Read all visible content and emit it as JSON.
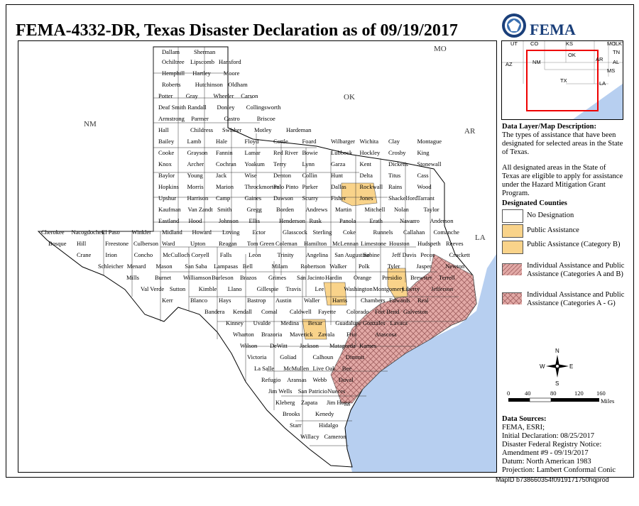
{
  "title": "FEMA-4332-DR, Texas Disaster Declaration as of 09/19/2017",
  "logo": {
    "text": "FEMA",
    "icon": "dhs-seal-icon"
  },
  "map": {
    "neighbor_labels": [
      {
        "text": "NM"
      },
      {
        "text": "OK"
      },
      {
        "text": "AR"
      },
      {
        "text": "LA"
      },
      {
        "text": "MO"
      }
    ],
    "county_labels": [
      "Dallam",
      "Sherman",
      "Ochiltree",
      "Lipscomb",
      "Hansford",
      "Hemphill",
      "Hartley",
      "Moore",
      "Roberts",
      "Hutchinson",
      "Oldham",
      "Potter",
      "Gray",
      "Wheeler",
      "Carson",
      "Deaf Smith",
      "Randall",
      "Donley",
      "Collingsworth",
      "Armstrong",
      "Parmer",
      "Castro",
      "Briscoe",
      "Hall",
      "Childress",
      "Swisher",
      "Motley",
      "Hardeman",
      "Bailey",
      "Lamb",
      "Hale",
      "Floyd",
      "Cottle",
      "Foard",
      "Wilbarger",
      "Wichita",
      "Clay",
      "Montague",
      "Cooke",
      "Grayson",
      "Fannin",
      "Lamar",
      "Red River",
      "Bowie",
      "Lubbock",
      "Hockley",
      "Crosby",
      "King",
      "Knox",
      "Archer",
      "Cochran",
      "Yoakum",
      "Terry",
      "Lynn",
      "Garza",
      "Kent",
      "Dickens",
      "Stonewall",
      "Baylor",
      "Young",
      "Jack",
      "Wise",
      "Denton",
      "Collin",
      "Hunt",
      "Delta",
      "Titus",
      "Cass",
      "Hopkins",
      "Morris",
      "Marion",
      "Throckmorton",
      "Palo Pinto",
      "Parker",
      "Dallas",
      "Rockwall",
      "Rains",
      "Wood",
      "Upshur",
      "Harrison",
      "Camp",
      "Gaines",
      "Dawson",
      "Scurry",
      "Fisher",
      "Jones",
      "Shackelford",
      "Tarrant",
      "Kaufman",
      "Van Zandt",
      "Smith",
      "Gregg",
      "Borden",
      "Andrews",
      "Martin",
      "Mitchell",
      "Nolan",
      "Taylor",
      "Eastland",
      "Hood",
      "Johnson",
      "Ellis",
      "Henderson",
      "Rusk",
      "Panola",
      "Erath",
      "Navarro",
      "Anderson",
      "Cherokee",
      "Nacogdoches",
      "El Paso",
      "Winkler",
      "Midland",
      "Howard",
      "Loving",
      "Ector",
      "Glasscock",
      "Sterling",
      "Coke",
      "Runnels",
      "Callahan",
      "Comanche",
      "Bosque",
      "Hill",
      "Freestone",
      "Culberson",
      "Ward",
      "Upton",
      "Reagan",
      "Tom Green",
      "Coleman",
      "Hamilton",
      "McLennan",
      "Limestone",
      "Houston",
      "Hudspeth",
      "Reeves",
      "Crane",
      "Irion",
      "Concho",
      "McCulloch",
      "Coryell",
      "Falls",
      "Leon",
      "Trinity",
      "Angelina",
      "San Augustine",
      "Sabine",
      "Jeff Davis",
      "Pecos",
      "Crockett",
      "Schleicher",
      "Menard",
      "Mason",
      "San Saba",
      "Lampasas",
      "Bell",
      "Milam",
      "Robertson",
      "Walker",
      "Polk",
      "Tyler",
      "Jasper",
      "Newton",
      "Mills",
      "Burnet",
      "Williamson",
      "Burleson",
      "Brazos",
      "Grimes",
      "San Jacinto",
      "Hardin",
      "Orange",
      "Presidio",
      "Brewster",
      "Terrell",
      "Val Verde",
      "Sutton",
      "Kimble",
      "Llano",
      "Gillespie",
      "Travis",
      "Lee",
      "Washington",
      "Montgomery",
      "Liberty",
      "Jefferson",
      "Kerr",
      "Blanco",
      "Hays",
      "Bastrop",
      "Austin",
      "Waller",
      "Harris",
      "Chambers",
      "Edwards",
      "Real",
      "Bandera",
      "Kendall",
      "Comal",
      "Caldwell",
      "Fayette",
      "Colorado",
      "Fort Bend",
      "Galveston",
      "Kinney",
      "Uvalde",
      "Medina",
      "Bexar",
      "Guadalupe",
      "Gonzales",
      "Lavaca",
      "Wharton",
      "Brazoria",
      "Maverick",
      "Zavala",
      "Frio",
      "Atascosa",
      "Wilson",
      "DeWitt",
      "Jackson",
      "Matagorda",
      "Karnes",
      "Victoria",
      "Goliad",
      "Calhoun",
      "Dimmit",
      "La Salle",
      "McMullen",
      "Live Oak",
      "Bee",
      "Refugio",
      "Aransas",
      "Webb",
      "Duval",
      "Jim Wells",
      "San Patricio",
      "Nueces",
      "Kleberg",
      "Zapata",
      "Jim Hogg",
      "Brooks",
      "Kenedy",
      "Starr",
      "Hidalgo",
      "Willacy",
      "Cameron"
    ],
    "compass": {
      "n": "N",
      "s": "S",
      "e": "E",
      "w": "W"
    },
    "scale": {
      "ticks": [
        "0",
        "40",
        "80",
        "120",
        "160"
      ],
      "unit": "Miles"
    }
  },
  "inset": {
    "labels": [
      "UT",
      "CO",
      "KS",
      "MO",
      "IL",
      "KY",
      "TN",
      "AZ",
      "NM",
      "OK",
      "AR",
      "AL",
      "MS",
      "TX",
      "LA"
    ]
  },
  "description": {
    "heading": "Data Layer/Map Description:",
    "text1": "The types of assistance that have been designated for selected areas in the State of Texas.",
    "text2": "All designated areas in the State of Texas are eligible to apply for assistance under the Hazard Mitigation Grant Program."
  },
  "legend": {
    "title": "Designated Counties",
    "items": [
      {
        "label": "No Designation",
        "color": "#ffffff"
      },
      {
        "label": "Public Assistance",
        "color": "#f9d38a"
      },
      {
        "label": "Public Assistance (Category B)",
        "color": "#f9d38a"
      },
      {
        "label": "Individual Assistance and Public Assistance (Categories A and B)",
        "color": "#e2a9a6"
      },
      {
        "label": "Individual Assistance and Public Assistance (Categories A - G)",
        "color": "#e2a9a6"
      }
    ]
  },
  "sources": {
    "heading": "Data Sources:",
    "lines": [
      "FEMA, ESRI;",
      "Initial Declaration: 08/25/2017",
      "Disaster Federal Registry Notice:",
      "Amendment #9 - 09/19/2017",
      "Datum: North American 1983",
      "Projection: Lambert Conformal Conic"
    ]
  },
  "map_id": "MapID b738660354f0919171750hqprod",
  "colors": {
    "water": "#b7cff0",
    "pa": "#f9d38a",
    "ia": "#e2a9a6",
    "land": "#ffffff",
    "neighbor": "#ffffff"
  }
}
